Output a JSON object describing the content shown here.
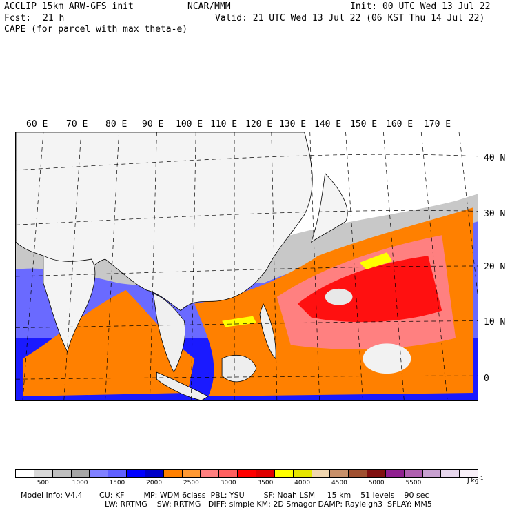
{
  "header": {
    "model": "ACCLIP 15km ARW-GFS init",
    "center": "NCAR/MMM",
    "init": "Init: 00 UTC Wed 13 Jul 22",
    "fcst_label": "Fcst:",
    "fcst_value": "21 h",
    "valid": "Valid: 21 UTC Wed 13 Jul 22 (06 KST Thu 14 Jul 22)",
    "field": "CAPE (for parcel with max theta-e)"
  },
  "map": {
    "lon_labels": [
      "60 E",
      "70 E",
      "80 E",
      "90 E",
      "100 E",
      "110 E",
      "120 E",
      "130 E",
      "140 E",
      "150 E",
      "160 E",
      "170 E"
    ],
    "lat_labels": [
      "40 N",
      "30 N",
      "20 N",
      "10 N",
      "0"
    ]
  },
  "colorbar": {
    "colors": [
      "#ffffff",
      "#d9d9d9",
      "#bfbfbf",
      "#a6a6a6",
      "#8080ff",
      "#6060ff",
      "#0000ff",
      "#0000c8",
      "#ff8000",
      "#ff9933",
      "#ff8080",
      "#ff6060",
      "#ff0000",
      "#e00000",
      "#ffff00",
      "#e6e600",
      "#f0d6b0",
      "#c8906a",
      "#a05030",
      "#801010",
      "#902090",
      "#b060b0",
      "#c8a0d0",
      "#e6d6ec",
      "#f8f0f8"
    ],
    "ticks": [
      "500",
      "1000",
      "1500",
      "2000",
      "2500",
      "3000",
      "3500",
      "4000",
      "4500",
      "5000",
      "5500"
    ],
    "units": "J kg"
  },
  "footer": {
    "line1": "Model Info: V4.4       CU: KF        MP: WDM 6class  PBL: YSU        SF: Noah LSM     15 km    51 levels    90 sec",
    "line2": "LW: RRTMG    SW: RRTMG   DIFF: simple KM: 2D Smagor DAMP: Rayleigh3  SFLAY: MM5"
  }
}
